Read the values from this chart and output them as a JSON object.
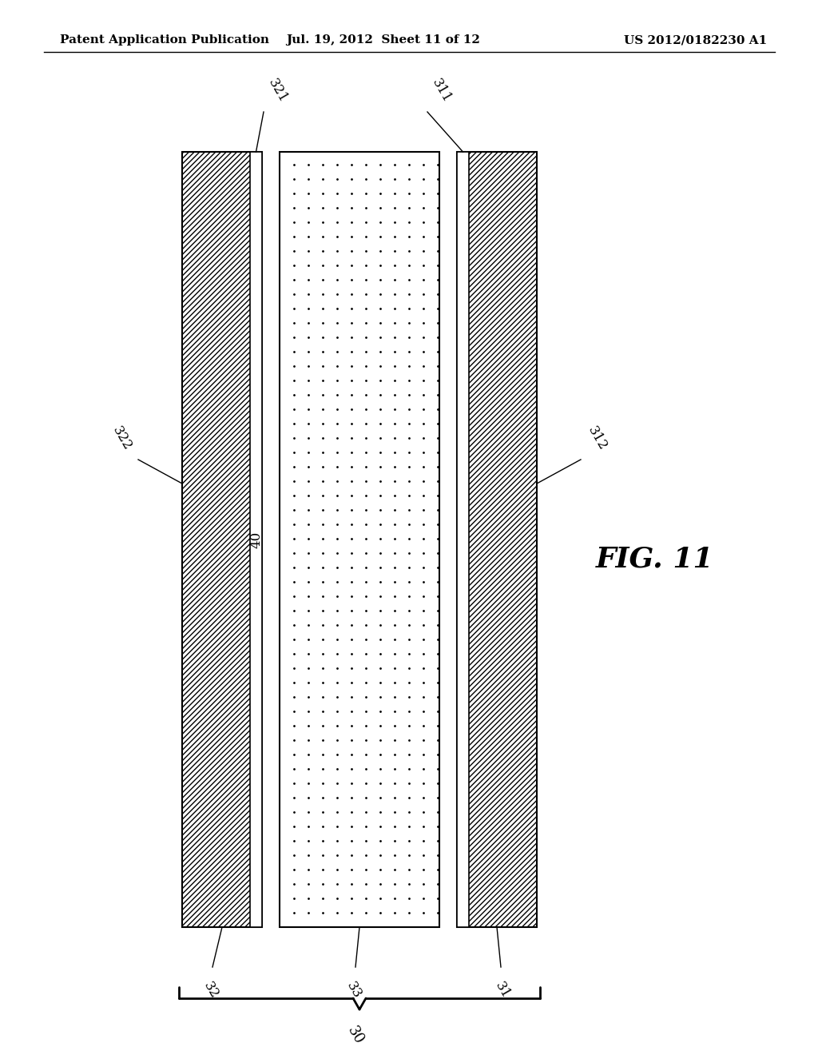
{
  "bg_color": "#ffffff",
  "header_left": "Patent Application Publication",
  "header_mid": "Jul. 19, 2012  Sheet 11 of 12",
  "header_right": "US 2012/0182230 A1",
  "fig_label": "FIG. 11",
  "label_40": "40",
  "label_30": "30",
  "label_31": "31",
  "label_32": "32",
  "label_33": "33",
  "label_311": "311",
  "label_312": "312",
  "label_321": "321",
  "label_322": "322"
}
